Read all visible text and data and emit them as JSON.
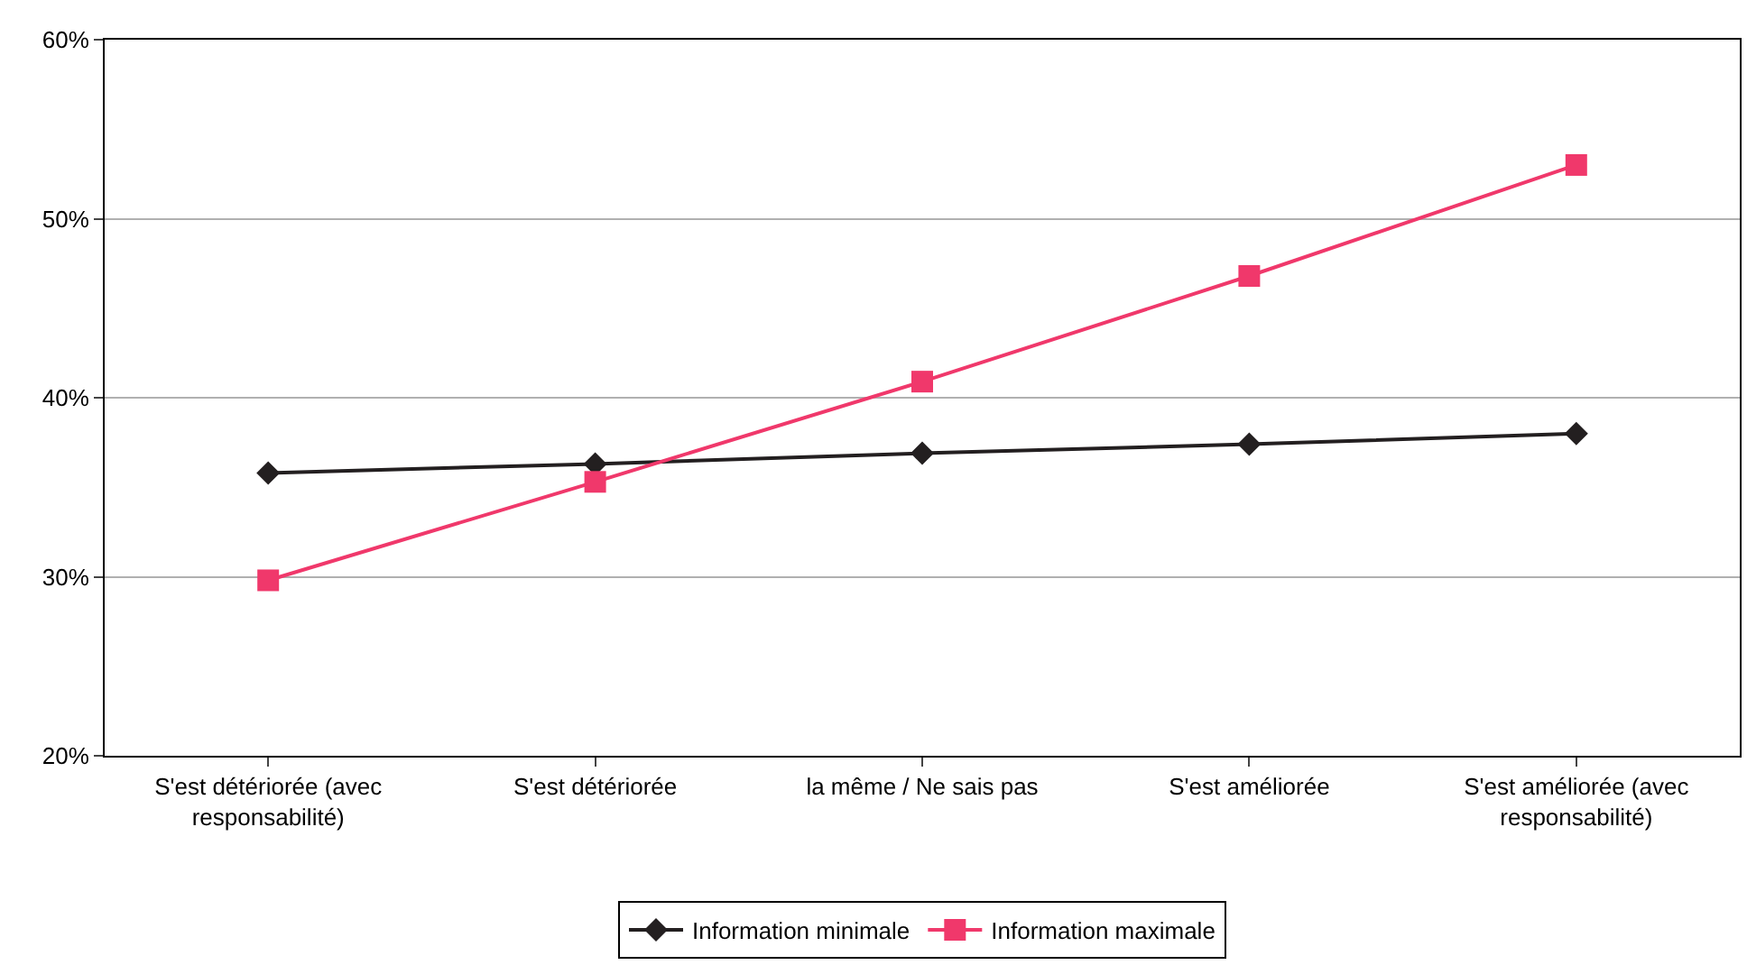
{
  "chart_data": {
    "type": "line",
    "categories": [
      "S'est détériorée (avec responsabilité)",
      "S'est détériorée",
      "la même / Ne sais pas",
      "S'est améliorée",
      "S'est améliorée (avec responsabilité)"
    ],
    "series": [
      {
        "name": "Information minimale",
        "color": "#231f20",
        "marker": "diamond",
        "values": [
          35.8,
          36.3,
          36.9,
          37.4,
          38.0
        ]
      },
      {
        "name": "Information maximale",
        "color": "#f0386b",
        "marker": "square",
        "values": [
          29.8,
          35.3,
          40.9,
          46.8,
          53.0
        ]
      }
    ],
    "ylim": [
      20,
      60
    ],
    "yticks": [
      {
        "value": 20,
        "label": "20%"
      },
      {
        "value": 30,
        "label": "30%"
      },
      {
        "value": 40,
        "label": "40%"
      },
      {
        "value": 50,
        "label": "50%"
      },
      {
        "value": 60,
        "label": "60%"
      }
    ],
    "grid": "y",
    "legend": "bottom",
    "line_style": "solid"
  }
}
